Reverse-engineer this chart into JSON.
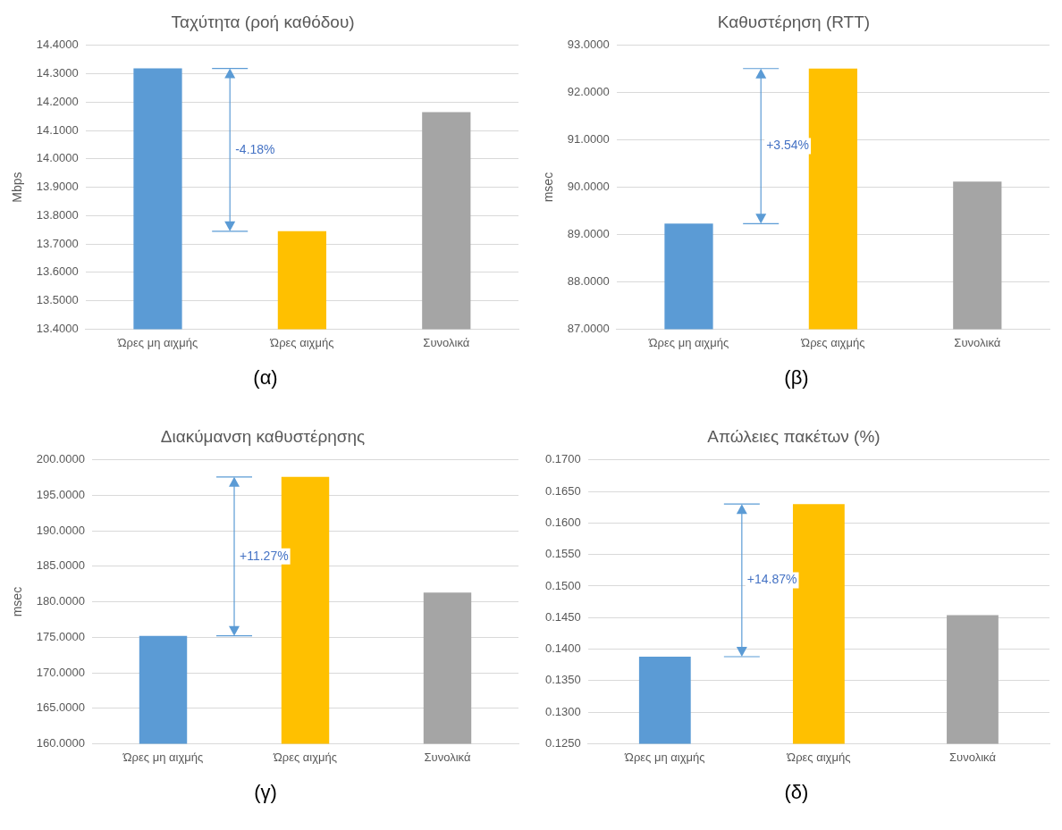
{
  "chart_data": [
    {
      "type": "bar",
      "title": "Ταχύτητα (ροή καθόδου)",
      "ylabel": "Mbps",
      "categories": [
        "Ώρες μη αιχμής",
        "Ώρες αιχμής",
        "Συνολικά"
      ],
      "values": [
        14.319,
        13.745,
        14.165
      ],
      "colors": [
        "#5b9bd5",
        "#ffc000",
        "#a5a5a5"
      ],
      "ylim": [
        13.4,
        14.4
      ],
      "yticks": [
        {
          "value": 13.4,
          "label": "13.4000"
        },
        {
          "value": 13.5,
          "label": "13.5000"
        },
        {
          "value": 13.6,
          "label": "13.6000"
        },
        {
          "value": 13.7,
          "label": "13.7000"
        },
        {
          "value": 13.8,
          "label": "13.8000"
        },
        {
          "value": 13.9,
          "label": "13.9000"
        },
        {
          "value": 14.0,
          "label": "14.0000"
        },
        {
          "value": 14.1,
          "label": "14.1000"
        },
        {
          "value": 14.2,
          "label": "14.2000"
        },
        {
          "value": 14.3,
          "label": "14.3000"
        },
        {
          "value": 14.4,
          "label": "14.4000"
        }
      ],
      "grid": "y",
      "annotations": [
        "-4.18%",
        "(α)"
      ]
    },
    {
      "type": "bar",
      "title": "Καθυστέρηση (RTT)",
      "ylabel": "msec",
      "categories": [
        "Ώρες μη αιχμής",
        "Ώρες αιχμής",
        "Συνολικά"
      ],
      "values": [
        89.23,
        92.51,
        90.12
      ],
      "colors": [
        "#5b9bd5",
        "#ffc000",
        "#a5a5a5"
      ],
      "ylim": [
        87,
        93
      ],
      "yticks": [
        {
          "value": 87,
          "label": "87.0000"
        },
        {
          "value": 88,
          "label": "88.0000"
        },
        {
          "value": 89,
          "label": "89.0000"
        },
        {
          "value": 90,
          "label": "90.0000"
        },
        {
          "value": 91,
          "label": "91.0000"
        },
        {
          "value": 92,
          "label": "92.0000"
        },
        {
          "value": 93,
          "label": "93.0000"
        }
      ],
      "grid": "y",
      "annotations": [
        "+3.54%",
        "(β)"
      ]
    },
    {
      "type": "bar",
      "title": "Διακύμανση καθυστέρησης",
      "ylabel": "msec",
      "categories": [
        "Ώρες μη αιχμής",
        "Ώρες αιχμής",
        "Συνολικά"
      ],
      "values": [
        175.2,
        197.6,
        181.3
      ],
      "colors": [
        "#5b9bd5",
        "#ffc000",
        "#a5a5a5"
      ],
      "ylim": [
        160,
        200
      ],
      "yticks": [
        {
          "value": 160,
          "label": "160.0000"
        },
        {
          "value": 165,
          "label": "165.0000"
        },
        {
          "value": 170,
          "label": "170.0000"
        },
        {
          "value": 175,
          "label": "175.0000"
        },
        {
          "value": 180,
          "label": "180.0000"
        },
        {
          "value": 185,
          "label": "185.0000"
        },
        {
          "value": 190,
          "label": "190.0000"
        },
        {
          "value": 195,
          "label": "195.0000"
        },
        {
          "value": 200,
          "label": "200.0000"
        }
      ],
      "grid": "y",
      "annotations": [
        "+11.27%",
        "(γ)"
      ]
    },
    {
      "type": "bar",
      "title": "Απώλειες πακέτων (%)",
      "categories": [
        "Ώρες μη αιχμής",
        "Ώρες αιχμής",
        "Συνολικά"
      ],
      "values": [
        0.1388,
        0.163,
        0.1454
      ],
      "colors": [
        "#5b9bd5",
        "#ffc000",
        "#a5a5a5"
      ],
      "ylim": [
        0.125,
        0.17
      ],
      "yticks": [
        {
          "value": 0.125,
          "label": "0.1250"
        },
        {
          "value": 0.13,
          "label": "0.1300"
        },
        {
          "value": 0.135,
          "label": "0.1350"
        },
        {
          "value": 0.14,
          "label": "0.1400"
        },
        {
          "value": 0.145,
          "label": "0.1450"
        },
        {
          "value": 0.15,
          "label": "0.1500"
        },
        {
          "value": 0.155,
          "label": "0.1550"
        },
        {
          "value": 0.16,
          "label": "0.1600"
        },
        {
          "value": 0.165,
          "label": "0.1650"
        },
        {
          "value": 0.17,
          "label": "0.1700"
        }
      ],
      "grid": "y",
      "annotations": [
        "+14.87%",
        "(δ)"
      ]
    }
  ]
}
